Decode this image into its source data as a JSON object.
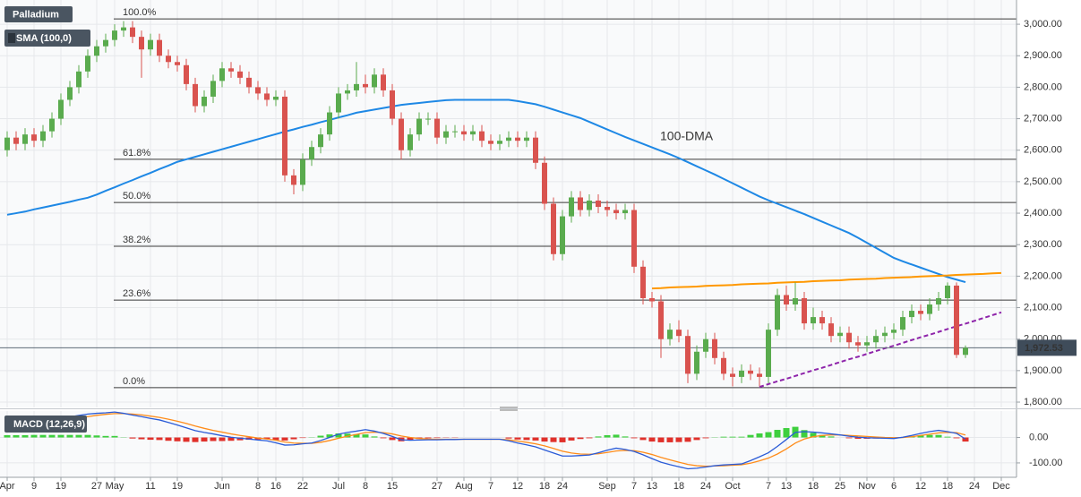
{
  "chart_data": {
    "type": "candlestick",
    "title": "Palladium",
    "categories": [
      "Apr",
      null,
      null,
      "9",
      null,
      null,
      "19",
      null,
      null,
      null,
      "27",
      null,
      "May",
      null,
      null,
      null,
      "11",
      null,
      null,
      "19",
      null,
      null,
      null,
      null,
      "Jun",
      null,
      null,
      null,
      "8",
      null,
      "16",
      null,
      null,
      "22",
      null,
      null,
      null,
      "Jul",
      null,
      null,
      "8",
      null,
      null,
      "15",
      null,
      null,
      null,
      null,
      "27",
      null,
      null,
      "Aug",
      null,
      null,
      "7",
      null,
      null,
      "12",
      null,
      null,
      "18",
      null,
      "24",
      null,
      null,
      null,
      null,
      "Sep",
      null,
      null,
      "7",
      null,
      "13",
      null,
      null,
      "18",
      null,
      null,
      "24",
      null,
      null,
      "Oct",
      null,
      null,
      null,
      "7",
      null,
      "13",
      null,
      null,
      "18",
      null,
      null,
      "25",
      null,
      null,
      "Nov",
      null,
      null,
      "6",
      null,
      null,
      "12",
      null,
      null,
      "18",
      null,
      null,
      "24",
      null,
      null,
      "Dec"
    ],
    "open": [
      2600,
      2640,
      2620,
      2650,
      2630,
      2660,
      2700,
      2760,
      2800,
      2850,
      2900,
      2930,
      2950,
      2980,
      2990,
      2960,
      2920,
      2950,
      2900,
      2880,
      2870,
      2810,
      2740,
      2770,
      2820,
      2860,
      2850,
      2830,
      2800,
      2780,
      2760,
      2770,
      2520,
      2490,
      2570,
      2610,
      2650,
      2720,
      2780,
      2790,
      2810,
      2800,
      2840,
      2790,
      2700,
      2600,
      2650,
      2700,
      2700,
      2640,
      2660,
      2660,
      2650,
      2660,
      2630,
      2620,
      2630,
      2640,
      2630,
      2640,
      2560,
      2430,
      2270,
      2390,
      2450,
      2410,
      2440,
      2420,
      2410,
      2400,
      2410,
      2230,
      2130,
      2120,
      2000,
      2030,
      2010,
      1890,
      1960,
      2000,
      1940,
      1890,
      1880,
      1900,
      1890,
      1880,
      2030,
      2140,
      2110,
      2130,
      2050,
      2070,
      2050,
      2010,
      2020,
      1990,
      1980,
      1990,
      2010,
      2020,
      2030,
      2070,
      2090,
      2080,
      2110,
      2130,
      2170,
      1950,
      null,
      null,
      null,
      null
    ],
    "high": [
      2660,
      2660,
      2670,
      2670,
      2680,
      2720,
      2780,
      2820,
      2870,
      2920,
      2950,
      2970,
      3000,
      3010,
      3010,
      2980,
      2970,
      2970,
      2920,
      2900,
      2890,
      2830,
      2790,
      2840,
      2880,
      2880,
      2870,
      2850,
      2820,
      2800,
      2790,
      2790,
      2540,
      2590,
      2630,
      2670,
      2740,
      2800,
      2810,
      2880,
      2840,
      2860,
      2860,
      2810,
      2720,
      2670,
      2720,
      2720,
      2720,
      2680,
      2680,
      2680,
      2680,
      2680,
      2650,
      2650,
      2660,
      2660,
      2660,
      2660,
      2580,
      2450,
      2410,
      2470,
      2470,
      2460,
      2460,
      2440,
      2430,
      2430,
      2430,
      2250,
      2150,
      2140,
      2050,
      2060,
      2030,
      1980,
      2020,
      2020,
      1960,
      1910,
      1920,
      1920,
      1910,
      2050,
      2160,
      2170,
      2180,
      2150,
      2100,
      2090,
      2070,
      2040,
      2040,
      2010,
      2010,
      2030,
      2040,
      2050,
      2090,
      2110,
      2110,
      2130,
      2150,
      2180,
      2180,
      1980,
      null,
      null,
      null,
      null
    ],
    "low": [
      2580,
      2600,
      2600,
      2610,
      2610,
      2640,
      2680,
      2740,
      2780,
      2830,
      2880,
      2910,
      2930,
      2960,
      2940,
      2830,
      2900,
      2880,
      2860,
      2850,
      2790,
      2720,
      2720,
      2750,
      2800,
      2830,
      2810,
      2780,
      2760,
      2740,
      2740,
      2500,
      2460,
      2470,
      2550,
      2590,
      2630,
      2700,
      2760,
      2770,
      2780,
      2780,
      2770,
      2680,
      2570,
      2580,
      2630,
      2680,
      2620,
      2620,
      2640,
      2630,
      2630,
      2610,
      2600,
      2600,
      2610,
      2610,
      2610,
      2540,
      2410,
      2250,
      2250,
      2370,
      2390,
      2390,
      2400,
      2390,
      2380,
      2380,
      2210,
      2110,
      2100,
      1940,
      1980,
      1990,
      1860,
      1870,
      1940,
      1920,
      1870,
      1850,
      1860,
      1870,
      1850,
      1860,
      2010,
      2090,
      2090,
      2030,
      2030,
      2030,
      1990,
      1990,
      1970,
      1960,
      1960,
      1970,
      1990,
      2000,
      2010,
      2050,
      2060,
      2060,
      2090,
      2110,
      1940,
      1940,
      null,
      null,
      null,
      null
    ],
    "close": [
      2640,
      2620,
      2650,
      2630,
      2660,
      2700,
      2760,
      2800,
      2850,
      2900,
      2930,
      2950,
      2980,
      2990,
      2960,
      2920,
      2950,
      2900,
      2880,
      2870,
      2810,
      2740,
      2770,
      2820,
      2860,
      2850,
      2830,
      2800,
      2780,
      2760,
      2770,
      2520,
      2490,
      2570,
      2610,
      2650,
      2720,
      2780,
      2790,
      2810,
      2800,
      2840,
      2790,
      2700,
      2600,
      2650,
      2700,
      2700,
      2640,
      2660,
      2660,
      2650,
      2660,
      2630,
      2620,
      2630,
      2640,
      2630,
      2640,
      2560,
      2430,
      2270,
      2390,
      2450,
      2410,
      2440,
      2420,
      2410,
      2400,
      2410,
      2230,
      2130,
      2120,
      2000,
      2030,
      2010,
      1890,
      1960,
      2000,
      1940,
      1890,
      1880,
      1900,
      1890,
      1880,
      2030,
      2140,
      2110,
      2130,
      2050,
      2070,
      2050,
      2010,
      2020,
      1990,
      1980,
      1990,
      2010,
      2020,
      2030,
      2070,
      2090,
      2080,
      2110,
      2130,
      2170,
      1950,
      1972.53,
      null,
      null,
      null,
      null
    ],
    "up_color": "#5aab4e",
    "down_color": "#d9534f",
    "ylim": [
      1783,
      3077
    ],
    "yticks": [
      {
        "value": 1800,
        "label": "1,800.00"
      },
      {
        "value": 1900,
        "label": "1,900.00"
      },
      {
        "value": 2000,
        "label": "2,000.00"
      },
      {
        "value": 2100,
        "label": "2,100.00"
      },
      {
        "value": 2200,
        "label": "2,200.00"
      },
      {
        "value": 2300,
        "label": "2,300.00"
      },
      {
        "value": 2400,
        "label": "2,400.00"
      },
      {
        "value": 2500,
        "label": "2,500.00"
      },
      {
        "value": 2600,
        "label": "2,600.00"
      },
      {
        "value": 2700,
        "label": "2,700.00"
      },
      {
        "value": 2800,
        "label": "2,800.00"
      },
      {
        "value": 2900,
        "label": "2,900.00"
      },
      {
        "value": 3000,
        "label": "3,000.00"
      }
    ],
    "grid": true,
    "overlays": [
      {
        "name": "SMA (100,0)",
        "label": "100-DMA",
        "color": "#1e88e5",
        "values": [
          2395,
          2400,
          2405,
          2412,
          2418,
          2424,
          2430,
          2436,
          2443,
          2449,
          2459,
          2471,
          2482,
          2494,
          2505,
          2517,
          2528,
          2540,
          2551,
          2563,
          2571,
          2579,
          2587,
          2595,
          2603,
          2611,
          2619,
          2627,
          2635,
          2643,
          2651,
          2659,
          2666,
          2674,
          2681,
          2689,
          2696,
          2704,
          2711,
          2719,
          2724,
          2729,
          2734,
          2739,
          2744,
          2747,
          2750,
          2753,
          2756,
          2759,
          2760,
          2760,
          2760,
          2760,
          2760,
          2760,
          2760,
          2756,
          2751,
          2746,
          2738,
          2729,
          2720,
          2711,
          2702,
          2690,
          2678,
          2666,
          2654,
          2642,
          2631,
          2620,
          2609,
          2598,
          2587,
          2575,
          2562,
          2549,
          2536,
          2523,
          2509,
          2495,
          2481,
          2467,
          2453,
          2441,
          2430,
          2419,
          2408,
          2397,
          2385,
          2373,
          2361,
          2349,
          2337,
          2322,
          2306,
          2290,
          2274,
          2258,
          2247,
          2237,
          2227,
          2217,
          2207,
          2197,
          2189,
          2181,
          null,
          null,
          null,
          null
        ]
      }
    ],
    "trendlines": [
      {
        "color": "#ff9800",
        "dashed": false,
        "values": [
          null,
          null,
          null,
          null,
          null,
          null,
          null,
          null,
          null,
          null,
          null,
          null,
          null,
          null,
          null,
          null,
          null,
          null,
          null,
          null,
          null,
          null,
          null,
          null,
          null,
          null,
          null,
          null,
          null,
          null,
          null,
          null,
          null,
          null,
          null,
          null,
          null,
          null,
          null,
          null,
          null,
          null,
          null,
          null,
          null,
          null,
          null,
          null,
          null,
          null,
          null,
          null,
          null,
          null,
          null,
          null,
          null,
          null,
          null,
          null,
          null,
          null,
          null,
          null,
          null,
          null,
          null,
          null,
          null,
          null,
          null,
          null,
          2161,
          2162,
          2164,
          2165,
          2166,
          2167,
          2169,
          2170,
          2171,
          2172,
          2174,
          2175,
          2176,
          2177,
          2179,
          2180,
          2181,
          2182,
          2184,
          2185,
          2186,
          2187,
          2189,
          2190,
          2191,
          2192,
          2194,
          2195,
          2196,
          2197,
          2199,
          2200,
          2201,
          2202,
          2204,
          2205,
          2206,
          2207,
          2209,
          2210
        ]
      },
      {
        "color": "#8e24aa",
        "dashed": true,
        "values": [
          null,
          null,
          null,
          null,
          null,
          null,
          null,
          null,
          null,
          null,
          null,
          null,
          null,
          null,
          null,
          null,
          null,
          null,
          null,
          null,
          null,
          null,
          null,
          null,
          null,
          null,
          null,
          null,
          null,
          null,
          null,
          null,
          null,
          null,
          null,
          null,
          null,
          null,
          null,
          null,
          null,
          null,
          null,
          null,
          null,
          null,
          null,
          null,
          null,
          null,
          null,
          null,
          null,
          null,
          null,
          null,
          null,
          null,
          null,
          null,
          null,
          null,
          null,
          null,
          null,
          null,
          null,
          null,
          null,
          null,
          null,
          null,
          null,
          null,
          null,
          null,
          null,
          null,
          null,
          null,
          null,
          null,
          null,
          null,
          1848,
          1857,
          1866,
          1874,
          1883,
          1892,
          1901,
          1909,
          1918,
          1927,
          1936,
          1944,
          1953,
          1962,
          1971,
          1979,
          1988,
          1997,
          2006,
          2014,
          2023,
          2032,
          2041,
          2049,
          2058,
          2067,
          2076,
          2085
        ]
      }
    ],
    "fib_levels": [
      {
        "label": "100.0%",
        "value": 3017
      },
      {
        "label": "61.8%",
        "value": 2571
      },
      {
        "label": "50.0%",
        "value": 2434
      },
      {
        "label": "38.2%",
        "value": 2295
      },
      {
        "label": "23.6%",
        "value": 2124
      },
      {
        "label": "0.0%",
        "value": 1846
      }
    ],
    "last_price": {
      "value": 1972.53,
      "label": "1,972.53"
    },
    "macd": {
      "title": "MACD (12,26,9)",
      "macd_color": "#2a5bd7",
      "signal_color": "#ff8c1a",
      "pos_color": "#3ecf3e",
      "neg_color": "#e0302a",
      "ylim": [
        -146,
        104
      ],
      "yticks": [
        {
          "value": 0,
          "label": "0.00"
        },
        {
          "value": -100,
          "label": "-100.00"
        }
      ],
      "macd": [
        44,
        49,
        54,
        60,
        65,
        71,
        76,
        81,
        87,
        92,
        95,
        97,
        100,
        95,
        88,
        82,
        75,
        69,
        59,
        49,
        38,
        27,
        20,
        14,
        7,
        1,
        -3,
        -6,
        -10,
        -13,
        -21,
        -30,
        -29,
        -25,
        -22,
        -12,
        0,
        13,
        20,
        25,
        31,
        25,
        16,
        4,
        -9,
        -11,
        -10,
        -9,
        -9,
        -8,
        -8,
        -7,
        -7,
        -7,
        -7,
        -7,
        -13,
        -22,
        -29,
        -37,
        -49,
        -61,
        -73,
        -73,
        -71,
        -69,
        -60,
        -50,
        -42,
        -47,
        -55,
        -68,
        -83,
        -97,
        -107,
        -115,
        -123,
        -121,
        -116,
        -111,
        -108,
        -106,
        -104,
        -91,
        -76,
        -60,
        -35,
        -8,
        20,
        23,
        21,
        18,
        14,
        10,
        5,
        1,
        -1,
        -2,
        -3,
        -4,
        1,
        8,
        16,
        23,
        28,
        23,
        16,
        -6,
        null,
        null,
        null,
        null
      ],
      "signal": [
        35,
        40,
        45,
        50,
        55,
        61,
        66,
        71,
        77,
        82,
        87,
        91,
        94,
        94,
        92,
        89,
        84,
        79,
        72,
        64,
        55,
        45,
        36,
        28,
        21,
        14,
        8,
        3,
        -2,
        -6,
        -11,
        -18,
        -22,
        -23,
        -23,
        -19,
        -12,
        -3,
        5,
        12,
        19,
        21,
        19,
        14,
        6,
        0,
        -4,
        -6,
        -7,
        -7,
        -7,
        -7,
        -7,
        -7,
        -7,
        -7,
        -9,
        -14,
        -19,
        -25,
        -33,
        -43,
        -54,
        -61,
        -65,
        -66,
        -64,
        -59,
        -53,
        -51,
        -52,
        -58,
        -67,
        -78,
        -88,
        -97,
        -106,
        -111,
        -113,
        -112,
        -111,
        -109,
        -107,
        -101,
        -92,
        -81,
        -65,
        -45,
        -22,
        -6,
        3,
        8,
        10,
        10,
        8,
        6,
        4,
        2,
        0,
        -1,
        0,
        3,
        8,
        13,
        18,
        20,
        19,
        10,
        null,
        null,
        null,
        null
      ],
      "histogram": [
        9,
        9,
        9,
        10,
        10,
        10,
        10,
        10,
        10,
        10,
        8,
        6,
        6,
        1,
        -4,
        -7,
        -9,
        -10,
        -13,
        -15,
        -17,
        -18,
        -16,
        -14,
        -14,
        -13,
        -11,
        -9,
        -8,
        -7,
        -10,
        -12,
        -7,
        -2,
        1,
        7,
        12,
        16,
        15,
        13,
        12,
        4,
        -3,
        -10,
        -15,
        -11,
        -6,
        -3,
        -2,
        -1,
        -1,
        0,
        0,
        0,
        0,
        0,
        -4,
        -8,
        -10,
        -12,
        -16,
        -18,
        -19,
        -12,
        -6,
        -3,
        4,
        9,
        11,
        4,
        -3,
        -10,
        -16,
        -19,
        -19,
        -18,
        -17,
        -10,
        -3,
        1,
        3,
        3,
        3,
        10,
        16,
        21,
        30,
        37,
        42,
        29,
        18,
        10,
        4,
        0,
        -3,
        -5,
        -5,
        -4,
        -3,
        -3,
        1,
        5,
        8,
        10,
        10,
        3,
        -3,
        -16,
        null,
        null,
        null,
        null
      ]
    }
  }
}
